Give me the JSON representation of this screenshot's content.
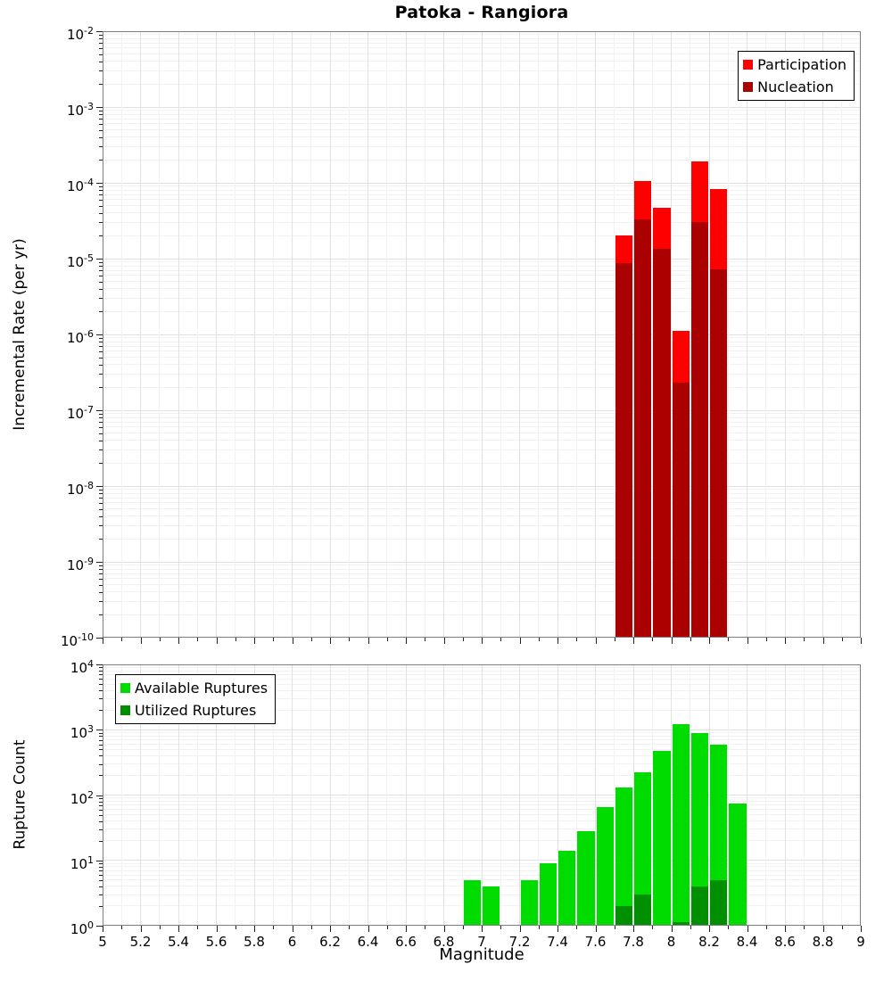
{
  "title": "Patoka - Rangiora",
  "axes": {
    "magnitude_label": "Magnitude",
    "top_ylabel": "Incremental Rate (per yr)",
    "bottom_ylabel": "Rupture Count"
  },
  "colors": {
    "participation": "#ff0000",
    "nucleation": "#aa0000",
    "available": "#00dc00",
    "utilized": "#008f00",
    "grid_major": "#e1e1e1",
    "grid_minor": "#f2f2f2",
    "plot_border": "#7f7f7f"
  },
  "chart_data": [
    {
      "type": "bar",
      "title": "Patoka - Rangiora",
      "ylabel": "Incremental Rate (per yr)",
      "yscale": "log",
      "ylim": [
        1e-10,
        0.01
      ],
      "xlim": [
        5,
        9
      ],
      "bar_width": 0.1,
      "grid": true,
      "legend_position": "top-right",
      "legend": [
        {
          "label": "Participation",
          "color": "#ff0000"
        },
        {
          "label": "Nucleation",
          "color": "#aa0000"
        }
      ],
      "y_tick_exponents": [
        -2,
        -3,
        -4,
        -5,
        -6,
        -7,
        -8,
        -9,
        -10
      ],
      "series": [
        {
          "name": "Participation",
          "color": "#ff0000",
          "x": [
            7.75,
            7.85,
            7.95,
            8.05,
            8.15,
            8.25
          ],
          "values": [
            2e-05,
            0.000105,
            4.7e-05,
            1.1e-06,
            0.00019,
            8.3e-05
          ]
        },
        {
          "name": "Nucleation",
          "color": "#aa0000",
          "x": [
            7.75,
            7.85,
            7.95,
            8.05,
            8.15,
            8.25
          ],
          "values": [
            8.7e-06,
            3.3e-05,
            1.35e-05,
            2.3e-07,
            3e-05,
            7.3e-06
          ]
        }
      ]
    },
    {
      "type": "bar",
      "ylabel": "Rupture Count",
      "xlabel": "Magnitude",
      "yscale": "log",
      "ylim": [
        1,
        10000.0
      ],
      "xlim": [
        5,
        9
      ],
      "bar_width": 0.1,
      "grid": true,
      "legend_position": "top-left",
      "legend": [
        {
          "label": "Available Ruptures",
          "color": "#00dc00"
        },
        {
          "label": "Utilized Ruptures",
          "color": "#008f00"
        }
      ],
      "x_tick_labels": [
        "5",
        "5.2",
        "5.4",
        "5.6",
        "5.8",
        "6",
        "6.2",
        "6.4",
        "6.6",
        "6.8",
        "7",
        "7.2",
        "7.4",
        "7.6",
        "7.8",
        "8",
        "8.2",
        "8.4",
        "8.6",
        "8.8",
        "9"
      ],
      "y_tick_exponents": [
        0,
        1,
        2,
        3,
        4
      ],
      "series": [
        {
          "name": "Available Ruptures",
          "color": "#00dc00",
          "x": [
            6.95,
            7.05,
            7.25,
            7.35,
            7.45,
            7.55,
            7.65,
            7.75,
            7.85,
            7.95,
            8.05,
            8.15,
            8.25,
            8.35
          ],
          "values": [
            5,
            4,
            5,
            9,
            14,
            28,
            65,
            130,
            220,
            480,
            1200,
            900,
            600,
            75
          ]
        },
        {
          "name": "Utilized Ruptures",
          "color": "#008f00",
          "x": [
            7.75,
            7.85,
            8.05,
            8.15,
            8.25
          ],
          "values": [
            2,
            3,
            1,
            4,
            5
          ]
        }
      ]
    }
  ]
}
